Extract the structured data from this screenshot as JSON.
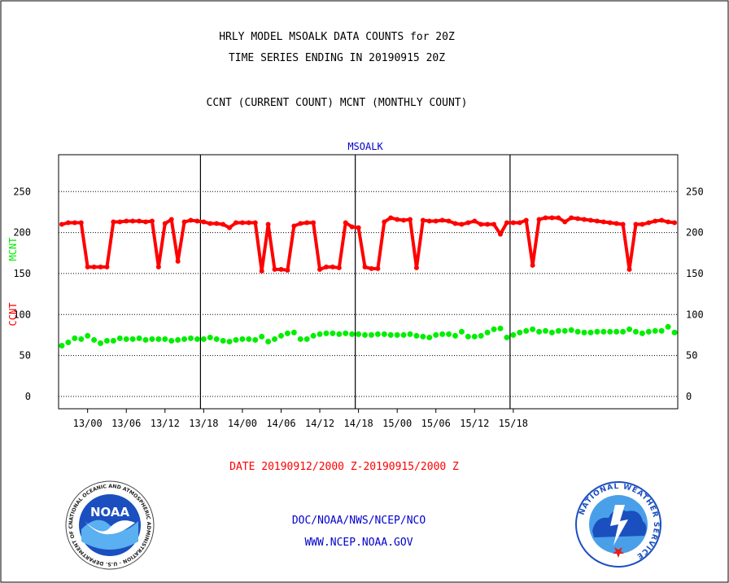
{
  "header": {
    "title_line1": "HRLY MODEL MSOALK DATA COUNTS for 20Z",
    "title_line2": "TIME SERIES ENDING IN 20190915 20Z",
    "subtitle": "CCNT (CURRENT COUNT) MCNT (MONTHLY COUNT)"
  },
  "footer": {
    "date_range": "DATE 20190912/2000 Z-20190915/2000 Z",
    "agency": "DOC/NOAA/NWS/NCEP/NCO",
    "url": "WWW.NCEP.NOAA.GOV"
  },
  "logos": {
    "noaa_text": "NOAA",
    "noaa_ring_text": "NATIONAL OCEANIC AND ATMOSPHERIC ADMINISTRATION · U.S. DEPARTMENT OF COMMERCE",
    "nws_ring_text": "NATIONAL WEATHER SERVICE"
  },
  "colors": {
    "ccnt": "#ff0000",
    "mcnt": "#00ee00",
    "title": "#000000",
    "plot_title": "#0000cc",
    "footer_blue": "#0000cc",
    "date_red": "#ff0000"
  },
  "chart_data": {
    "type": "line",
    "title": "MSOALK",
    "ylabel_series": [
      "CCNT",
      "MCNT"
    ],
    "ylim": [
      -15,
      295
    ],
    "yticks": [
      0,
      50,
      100,
      150,
      200,
      250
    ],
    "grid": "horizontal dotted",
    "x_start": "2019-09-12 20Z",
    "x_end": "2019-09-15 20Z",
    "x_step_hours": 1,
    "xticks": [
      "13/00",
      "13/06",
      "13/12",
      "13/18",
      "14/00",
      "14/06",
      "14/12",
      "14/18",
      "15/00",
      "15/06",
      "15/12",
      "15/18"
    ],
    "day_boundaries": [
      "13/18",
      "14/18",
      "15/18"
    ],
    "series": [
      {
        "name": "CCNT",
        "values": [
          210,
          212,
          212,
          212,
          158,
          158,
          158,
          158,
          213,
          213,
          214,
          214,
          214,
          213,
          214,
          158,
          211,
          216,
          165,
          213,
          215,
          214,
          213,
          211,
          211,
          210,
          206,
          212,
          212,
          212,
          212,
          153,
          210,
          155,
          155,
          154,
          208,
          211,
          212,
          212,
          155,
          158,
          158,
          157,
          212,
          207,
          206,
          158,
          156,
          156,
          213,
          218,
          216,
          215,
          216,
          157,
          215,
          214,
          214,
          215,
          214,
          211,
          210,
          212,
          214,
          210,
          210,
          210,
          198,
          212,
          212,
          212,
          215,
          160,
          216,
          218,
          218,
          218,
          213,
          218,
          217,
          216,
          215,
          214,
          213,
          212,
          211,
          210,
          155,
          210,
          210,
          212,
          214,
          215,
          213,
          212
        ]
      },
      {
        "name": "MCNT",
        "values": [
          62,
          66,
          71,
          70,
          74,
          69,
          65,
          68,
          68,
          71,
          70,
          70,
          71,
          69,
          70,
          70,
          70,
          68,
          69,
          70,
          71,
          70,
          70,
          72,
          70,
          68,
          67,
          69,
          70,
          70,
          69,
          73,
          67,
          70,
          74,
          77,
          78,
          70,
          70,
          74,
          76,
          77,
          77,
          76,
          77,
          76,
          76,
          75,
          75,
          76,
          76,
          75,
          75,
          75,
          76,
          74,
          73,
          72,
          75,
          76,
          76,
          74,
          79,
          73,
          73,
          74,
          78,
          82,
          83,
          72,
          75,
          78,
          80,
          82,
          79,
          80,
          78,
          80,
          80,
          81,
          79,
          78,
          78,
          79,
          79,
          79,
          79,
          79,
          82,
          79,
          77,
          79,
          80,
          80,
          85,
          78
        ]
      }
    ]
  }
}
